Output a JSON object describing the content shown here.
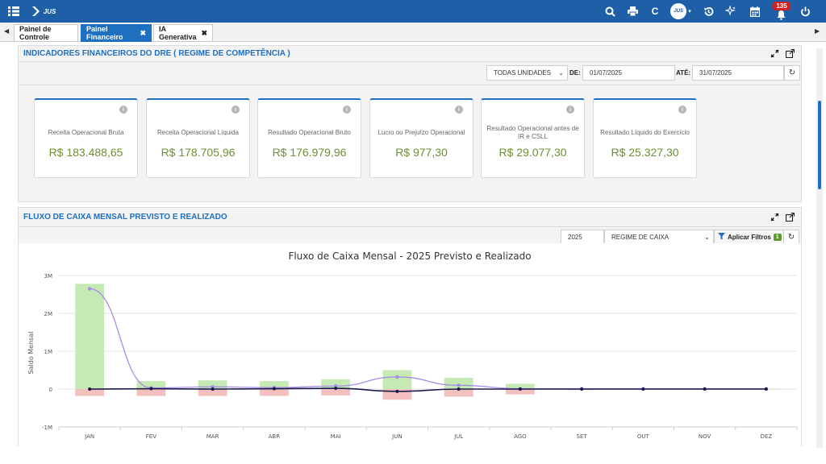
{
  "topbar": {
    "logo_text": "JUS",
    "avatar_text": "JUS",
    "notifications_count": "135",
    "icons": [
      "menu-grid-icon",
      "search-icon",
      "print-icon",
      "c-icon",
      "avatar",
      "history-icon",
      "sparkle-icon",
      "calendar-icon",
      "bell-icon",
      "power-icon"
    ]
  },
  "tabs": [
    {
      "label": "Painel de Controle",
      "active": false,
      "closable": false
    },
    {
      "label": "Painel Financeiro",
      "active": true,
      "closable": true
    },
    {
      "label": "IA Generativa",
      "active": false,
      "closable": true
    }
  ],
  "dre": {
    "title": "INDICADORES FINANCEIROS DO DRE ( REGIME DE COMPETÊNCIA )",
    "unit_select": "TODAS UNIDADES",
    "from_label": "DE:",
    "from_value": "01/07/2025",
    "to_label": "ATÉ:",
    "to_value": "31/07/2025",
    "cards": [
      {
        "label": "Receita Operacional Bruta",
        "value": "R$ 183.488,65"
      },
      {
        "label": "Receita Operacional Líquida",
        "value": "R$ 178.705,96"
      },
      {
        "label": "Resultado Operacional Bruto",
        "value": "R$ 176.979,96"
      },
      {
        "label": "Lucro ou Prejuízo Operacional",
        "value": "R$ 977,30"
      },
      {
        "label": "Resultado Operacional antes de IR e CSLL",
        "value": "R$ 29.077,30"
      },
      {
        "label": "Resultado Líquido do Exercício",
        "value": "R$ 25.327,30"
      }
    ]
  },
  "cashflow": {
    "title": "FLUXO DE CAIXA MENSAL PREVISTO E REALIZADO",
    "year_select": "2025",
    "regime_select": "REGIME DE CAIXA",
    "apply_label": "Aplicar Filtros",
    "apply_count": "1"
  },
  "colors": {
    "primary": "#1f6fc0",
    "topbar": "#1f5fa8",
    "kpi_value": "#6e8f34",
    "positive_bar": "#c6eab4",
    "negative_bar": "#f3c0c0",
    "forecast_line": "#a98ce8",
    "realized_line": "#1a1a4a"
  },
  "chart_data": {
    "type": "bar",
    "title": "Fluxo de Caixa Mensal - 2025 Previsto e Realizado",
    "ylabel": "Saldo Mensal",
    "ylim": [
      -1000000,
      3000000
    ],
    "y_ticks": [
      -1000000,
      0,
      1000000,
      2000000,
      3000000
    ],
    "y_tick_labels": [
      "-1M",
      "0",
      "1M",
      "2M",
      "3M"
    ],
    "categories": [
      "JAN",
      "FEV",
      "MAR",
      "ABR",
      "MAI",
      "JUN",
      "JUL",
      "AGO",
      "SET",
      "OUT",
      "NOV",
      "DEZ"
    ],
    "series": [
      {
        "kind": "bar",
        "values": [
          2780000,
          210000,
          230000,
          210000,
          260000,
          500000,
          300000,
          140000,
          20000,
          10000,
          10000,
          10000
        ]
      },
      {
        "kind": "bar",
        "values": [
          -180000,
          -180000,
          -180000,
          -180000,
          -170000,
          -280000,
          -200000,
          -140000,
          -20000,
          -10000,
          -10000,
          -10000
        ]
      },
      {
        "kind": "line",
        "values": [
          2650000,
          30000,
          60000,
          40000,
          80000,
          320000,
          100000,
          10000,
          10000,
          10000,
          10000,
          10000
        ]
      },
      {
        "kind": "line",
        "values": [
          0,
          10000,
          0,
          10000,
          20000,
          -60000,
          0,
          0,
          0,
          0,
          0,
          0
        ]
      }
    ],
    "grid": true
  }
}
